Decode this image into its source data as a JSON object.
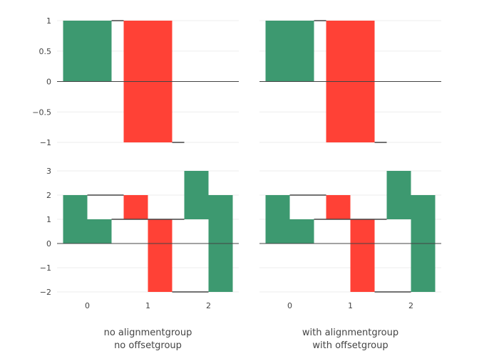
{
  "chart_data": [
    {
      "type": "waterfall",
      "position": "top-left",
      "x": [
        0,
        1,
        2
      ],
      "series": [
        {
          "measure": [
            "absolute",
            "relative",
            "relative"
          ],
          "values": [
            1,
            -2,
            0
          ]
        }
      ],
      "ylim": [
        -1,
        1
      ],
      "yticks": [
        "1",
        "0.5",
        "0",
        "−0.5",
        "−1"
      ],
      "xtick_labels": [],
      "xlabel": ""
    },
    {
      "type": "waterfall",
      "position": "top-right",
      "x": [
        0,
        1,
        2
      ],
      "series": [
        {
          "measure": [
            "absolute",
            "relative",
            "relative"
          ],
          "values": [
            1,
            -2,
            0
          ]
        }
      ],
      "ylim": [
        -1,
        1
      ],
      "yticks": [],
      "xtick_labels": [],
      "xlabel": ""
    },
    {
      "type": "waterfall",
      "position": "bottom-left",
      "x": [
        0,
        1,
        2
      ],
      "series": [
        {
          "measure": [
            "absolute",
            "relative",
            "relative"
          ],
          "values": [
            2,
            -1,
            2
          ]
        },
        {
          "measure": [
            "absolute",
            "relative",
            "relative"
          ],
          "values": [
            1,
            -3,
            4
          ]
        }
      ],
      "ylim": [
        -2,
        3
      ],
      "yticks": [
        "3",
        "2",
        "1",
        "0",
        "−1",
        "−2"
      ],
      "xtick_labels": [
        "0",
        "1",
        "2"
      ],
      "xlabel": [
        "no alignmentgroup",
        "no offsetgroup"
      ]
    },
    {
      "type": "waterfall",
      "position": "bottom-right",
      "x": [
        0,
        1,
        2
      ],
      "series": [
        {
          "measure": [
            "absolute",
            "relative",
            "relative"
          ],
          "values": [
            2,
            -1,
            2
          ]
        },
        {
          "measure": [
            "absolute",
            "relative",
            "relative"
          ],
          "values": [
            1,
            -3,
            4
          ]
        }
      ],
      "ylim": [
        -2,
        3
      ],
      "yticks": [],
      "xtick_labels": [
        "0",
        "1",
        "2"
      ],
      "xlabel": [
        "with alignmentgroup",
        "with offsetgroup"
      ]
    }
  ],
  "colors": {
    "increasing": "#3d9970",
    "decreasing": "#ff4136",
    "connector": "#444444",
    "grid": "#eeeeee",
    "zeroline": "#444444",
    "text": "#444444"
  }
}
